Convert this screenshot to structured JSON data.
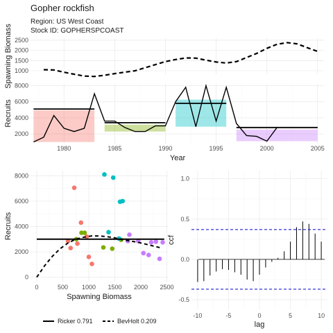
{
  "header": {
    "title": "Gopher rockfish",
    "region": "Region: US West Coast",
    "stock": "Stock ID: GOPHERSPCOAST"
  },
  "chart_data": [
    {
      "id": "biomass",
      "type": "line",
      "ylabel": "Spawning Biomass",
      "x": [
        1978,
        1979,
        1980,
        1981,
        1982,
        1983,
        1984,
        1985,
        1986,
        1987,
        1988,
        1989,
        1990,
        1991,
        1992,
        1993,
        1994,
        1995,
        1996,
        1997,
        1998,
        1999,
        2000,
        2001,
        2002,
        2003,
        2004,
        2005
      ],
      "values": [
        1050,
        1040,
        930,
        830,
        740,
        720,
        780,
        860,
        930,
        1000,
        1150,
        1300,
        1450,
        1550,
        1630,
        1620,
        1520,
        1430,
        1380,
        1450,
        1650,
        1850,
        2100,
        2300,
        2380,
        2320,
        2130,
        1950
      ],
      "line_style": "dashed",
      "yticks": [
        1000,
        1500,
        2000,
        2500
      ],
      "ylim": [
        830,
        2600
      ],
      "xlim": [
        1976.7,
        2005.7
      ]
    },
    {
      "id": "recruits_ts",
      "type": "line",
      "ylabel": "Recruits",
      "xlabel": "Year",
      "x": [
        1977,
        1978,
        1979,
        1980,
        1981,
        1982,
        1983,
        1984,
        1985,
        1986,
        1987,
        1988,
        1989,
        1990,
        1991,
        1992,
        1993,
        1994,
        1995,
        1996,
        1997,
        1998,
        1999,
        2000,
        2001,
        2002,
        2003,
        2004,
        2005
      ],
      "values": [
        1000,
        1600,
        4300,
        2700,
        2300,
        2700,
        7000,
        3600,
        3600,
        2800,
        2300,
        2300,
        3000,
        3000,
        6000,
        7800,
        2900,
        8000,
        3600,
        7800,
        3300,
        1800,
        1700,
        1100,
        2800,
        2800,
        2800,
        2800,
        2800
      ],
      "xticks": [
        1980,
        1985,
        1990,
        1995,
        2000,
        2005
      ],
      "yticks": [
        2000,
        4000,
        6000,
        8000
      ],
      "ylim": [
        800,
        8300
      ],
      "xlim": [
        1976.7,
        2005.7
      ],
      "regimes": [
        {
          "start": 1977,
          "end": 1983,
          "level": 5100,
          "color": "#f8766d"
        },
        {
          "start": 1984,
          "end": 1990,
          "level": 3400,
          "color": "#7cae00"
        },
        {
          "start": 1991,
          "end": 1996,
          "level": 5800,
          "color": "#00bfc4"
        },
        {
          "start": 1997,
          "end": 2005,
          "level": 2800,
          "color": "#c77cff"
        }
      ]
    },
    {
      "id": "stock_recruit",
      "type": "scatter",
      "xlabel": "Spawning Biomass",
      "ylabel": "Recruits",
      "xlim": [
        -120,
        2520
      ],
      "ylim": [
        -350,
        8400
      ],
      "xticks": [
        0,
        500,
        1000,
        1500,
        2000,
        2500
      ],
      "yticks": [
        0,
        2000,
        4000,
        6000,
        8000
      ],
      "points": [
        {
          "x": 600,
          "y": 2850,
          "g": "#f8766d"
        },
        {
          "x": 650,
          "y": 2300,
          "g": "#f8766d"
        },
        {
          "x": 720,
          "y": 7050,
          "g": "#f8766d"
        },
        {
          "x": 780,
          "y": 2650,
          "g": "#f8766d"
        },
        {
          "x": 850,
          "y": 4300,
          "g": "#f8766d"
        },
        {
          "x": 960,
          "y": 3200,
          "g": "#f8766d"
        },
        {
          "x": 1000,
          "y": 1600,
          "g": "#f8766d"
        },
        {
          "x": 1060,
          "y": 1050,
          "g": "#f8766d"
        },
        {
          "x": 760,
          "y": 3000,
          "g": "#7cae00"
        },
        {
          "x": 860,
          "y": 3500,
          "g": "#7cae00"
        },
        {
          "x": 920,
          "y": 3500,
          "g": "#7cae00"
        },
        {
          "x": 1280,
          "y": 2350,
          "g": "#7cae00"
        },
        {
          "x": 1450,
          "y": 2250,
          "g": "#7cae00"
        },
        {
          "x": 1620,
          "y": 2950,
          "g": "#7cae00"
        },
        {
          "x": 1300,
          "y": 8100,
          "g": "#00bfc4"
        },
        {
          "x": 1380,
          "y": 3550,
          "g": "#00bfc4"
        },
        {
          "x": 1470,
          "y": 7850,
          "g": "#00bfc4"
        },
        {
          "x": 1580,
          "y": 3050,
          "g": "#00bfc4"
        },
        {
          "x": 1600,
          "y": 5950,
          "g": "#00bfc4"
        },
        {
          "x": 1650,
          "y": 6000,
          "g": "#00bfc4"
        },
        {
          "x": 1750,
          "y": 2850,
          "g": "#c77cff"
        },
        {
          "x": 1780,
          "y": 3350,
          "g": "#c77cff"
        },
        {
          "x": 1950,
          "y": 2850,
          "g": "#c77cff"
        },
        {
          "x": 2050,
          "y": 1900,
          "g": "#c77cff"
        },
        {
          "x": 2150,
          "y": 1750,
          "g": "#c77cff"
        },
        {
          "x": 2200,
          "y": 2750,
          "g": "#c77cff"
        },
        {
          "x": 2290,
          "y": 2800,
          "g": "#c77cff"
        },
        {
          "x": 2360,
          "y": 1450,
          "g": "#c77cff"
        },
        {
          "x": 2420,
          "y": 2750,
          "g": "#c77cff"
        }
      ],
      "fits": [
        {
          "name": "Ricker 0.791",
          "style": "solid",
          "x": [
            0,
            2450
          ],
          "y": [
            3000,
            3000
          ]
        },
        {
          "name": "BevHolt 0.209",
          "style": "dashed",
          "x": [
            0,
            150,
            300,
            450,
            600,
            750,
            900,
            1050,
            1200,
            1350,
            1500,
            1650,
            1800,
            1950,
            2100,
            2250,
            2400
          ],
          "y": [
            0,
            900,
            1650,
            2250,
            2700,
            3000,
            3150,
            3250,
            3250,
            3200,
            3100,
            2950,
            2850,
            2750,
            2600,
            2450,
            2300
          ]
        }
      ],
      "legend_position": "bottom"
    },
    {
      "id": "ccf",
      "type": "bar",
      "xlabel": "lag",
      "ylabel": "ccf",
      "xlim": [
        -11,
        11
      ],
      "ylim": [
        -0.62,
        1.1
      ],
      "xticks": [
        -10,
        -5,
        0,
        5,
        10
      ],
      "yticks": [
        -0.5,
        0,
        0.5,
        1
      ],
      "yticklabels": [
        "-0.5",
        "0.0",
        "0.5",
        "1.0"
      ],
      "conf": 0.37,
      "conf_color": "#0000cc",
      "lags": [
        -10,
        -9,
        -8,
        -7,
        -6,
        -5,
        -4,
        -3,
        -2,
        -1,
        0,
        1,
        2,
        3,
        4,
        5,
        6,
        7,
        8,
        9,
        10
      ],
      "values": [
        -0.28,
        -0.27,
        -0.2,
        -0.15,
        -0.12,
        -0.13,
        -0.16,
        -0.19,
        -0.25,
        -0.27,
        -0.19,
        -0.1,
        -0.03,
        0.02,
        0.1,
        0.22,
        0.4,
        0.47,
        0.44,
        0.32,
        0.22
      ]
    }
  ]
}
